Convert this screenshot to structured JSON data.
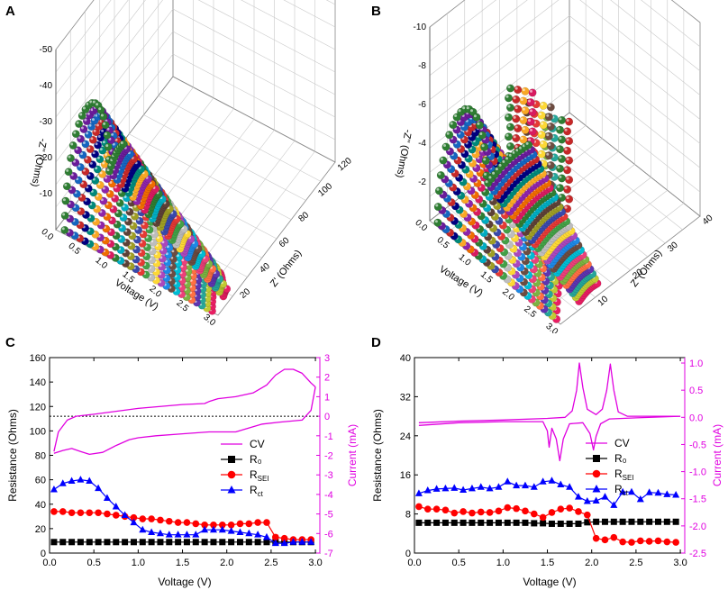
{
  "colors": {
    "black": "#000000",
    "red": "#ff0000",
    "blue": "#0000ff",
    "magenta": "#e000e0"
  },
  "panels": {
    "A": {
      "label": "A"
    },
    "B": {
      "label": "B"
    },
    "C": {
      "label": "C"
    },
    "D": {
      "label": "D"
    }
  },
  "chart_data": [
    {
      "id": "A",
      "type": "scatter",
      "title": "",
      "xlabel": "Voltage (V)",
      "ylabel": "Z' (Ohms)",
      "zlabel": "-Z'' (Ohms)",
      "voltage_ticks": [
        "0.0",
        "0.5",
        "1.0",
        "1.5",
        "2.0",
        "2.5",
        "3.0"
      ],
      "zre_ticks": [
        "20",
        "40",
        "60",
        "80",
        "100",
        "120"
      ],
      "zim_ticks": [
        "-10",
        "-20",
        "-30",
        "-40",
        "-50"
      ],
      "zre_range": [
        0,
        120
      ],
      "zim_range": [
        0,
        -50
      ],
      "series_count": 30
    },
    {
      "id": "B",
      "type": "scatter",
      "title": "",
      "xlabel": "Voltage (V)",
      "ylabel": "Z' (Ohms)",
      "zlabel": "-Z'' (Ohms)",
      "voltage_ticks": [
        "0.0",
        "0.5",
        "1.0",
        "1.5",
        "2.0",
        "2.5",
        "3.0"
      ],
      "zre_ticks": [
        "10",
        "20",
        "30",
        "40"
      ],
      "zim_ticks": [
        "-2",
        "-4",
        "-6",
        "-8",
        "-10"
      ],
      "zre_range": [
        0,
        40
      ],
      "zim_range": [
        0,
        -10
      ],
      "series_count": 30
    },
    {
      "id": "C",
      "type": "line",
      "xlabel": "Voltage (V)",
      "ylabel": "Resistance (Ohms)",
      "y2label": "Current (mA)",
      "xlim": [
        0,
        3.05
      ],
      "ylim": [
        0,
        160
      ],
      "y2lim": [
        -7,
        3
      ],
      "xticks": [
        "0.0",
        "0.5",
        "1.0",
        "1.5",
        "2.0",
        "2.5",
        "3.0"
      ],
      "yticks": [
        "0",
        "20",
        "40",
        "60",
        "80",
        "100",
        "120",
        "140",
        "160"
      ],
      "y2ticks": [
        "-7",
        "-6",
        "-5",
        "-4",
        "-3",
        "-2",
        "-1",
        "0",
        "1",
        "2",
        "3"
      ],
      "legend": [
        "CV",
        "R₀",
        "RSEI",
        "Rct"
      ],
      "zero_line_y2": 0,
      "x": [
        0.05,
        0.15,
        0.25,
        0.35,
        0.45,
        0.55,
        0.65,
        0.75,
        0.85,
        0.95,
        1.05,
        1.15,
        1.25,
        1.35,
        1.45,
        1.55,
        1.65,
        1.75,
        1.85,
        1.95,
        2.05,
        2.15,
        2.25,
        2.35,
        2.45,
        2.55,
        2.65,
        2.75,
        2.85,
        2.95
      ],
      "series": [
        {
          "name": "R0",
          "values": [
            9,
            9,
            9,
            9,
            9,
            9,
            9,
            9,
            9,
            9,
            9,
            9,
            9,
            9,
            9,
            9,
            9,
            9,
            9,
            9,
            9,
            9,
            9,
            9,
            9,
            9,
            9,
            9,
            9,
            9
          ]
        },
        {
          "name": "RSEI",
          "values": [
            34,
            34,
            33,
            33,
            33,
            33,
            32,
            31,
            30,
            29,
            28,
            28,
            27,
            26,
            25,
            25,
            24,
            23,
            23,
            23,
            23,
            24,
            24,
            25,
            25,
            13,
            12,
            11,
            11,
            11
          ]
        },
        {
          "name": "Rct",
          "values": [
            52,
            57,
            59,
            60,
            59,
            53,
            45,
            38,
            31,
            25,
            19,
            17,
            16,
            15,
            15,
            15,
            15,
            19,
            19,
            19,
            18,
            17,
            16,
            15,
            13,
            8,
            8,
            9,
            9,
            9
          ]
        }
      ],
      "cv_anodic": [
        [
          0.05,
          -1.8
        ],
        [
          0.1,
          -0.8
        ],
        [
          0.2,
          -0.2
        ],
        [
          0.3,
          0.0
        ],
        [
          0.5,
          0.1
        ],
        [
          1.0,
          0.4
        ],
        [
          1.5,
          0.6
        ],
        [
          1.75,
          0.65
        ],
        [
          1.8,
          0.75
        ],
        [
          1.9,
          0.9
        ],
        [
          2.1,
          1.0
        ],
        [
          2.3,
          1.2
        ],
        [
          2.45,
          1.6
        ],
        [
          2.55,
          2.1
        ],
        [
          2.65,
          2.4
        ],
        [
          2.75,
          2.4
        ],
        [
          2.85,
          2.2
        ],
        [
          2.95,
          1.7
        ],
        [
          3.0,
          1.5
        ]
      ],
      "cv_cathodic": [
        [
          3.0,
          1.5
        ],
        [
          2.95,
          0.3
        ],
        [
          2.85,
          -0.2
        ],
        [
          2.6,
          -0.3
        ],
        [
          2.4,
          -0.4
        ],
        [
          2.25,
          -0.6
        ],
        [
          2.1,
          -0.8
        ],
        [
          1.8,
          -0.8
        ],
        [
          1.5,
          -0.9
        ],
        [
          1.2,
          -1.0
        ],
        [
          1.0,
          -1.1
        ],
        [
          0.9,
          -1.2
        ],
        [
          0.75,
          -1.5
        ],
        [
          0.6,
          -1.85
        ],
        [
          0.45,
          -1.95
        ],
        [
          0.35,
          -1.8
        ],
        [
          0.25,
          -1.65
        ],
        [
          0.15,
          -1.75
        ],
        [
          0.05,
          -1.9
        ]
      ]
    },
    {
      "id": "D",
      "type": "line",
      "xlabel": "Voltage (V)",
      "ylabel": "Resistance (Ohms)",
      "y2label": "Current (mA)",
      "xlim": [
        0,
        3.05
      ],
      "ylim": [
        0,
        40
      ],
      "y2lim": [
        -2.5,
        1.1
      ],
      "xticks": [
        "0.0",
        "0.5",
        "1.0",
        "1.5",
        "2.0",
        "2.5",
        "3.0"
      ],
      "yticks": [
        "0",
        "8",
        "16",
        "24",
        "32",
        "40"
      ],
      "y2ticks": [
        "-2.5",
        "-2.0",
        "-1.5",
        "-1.0",
        "-0.5",
        "0.0",
        "0.5",
        "1.0"
      ],
      "legend": [
        "CV",
        "R₀",
        "RSEI",
        "Rct"
      ],
      "x": [
        0.05,
        0.15,
        0.25,
        0.35,
        0.45,
        0.55,
        0.65,
        0.75,
        0.85,
        0.95,
        1.05,
        1.15,
        1.25,
        1.35,
        1.45,
        1.55,
        1.65,
        1.75,
        1.85,
        1.95,
        2.05,
        2.15,
        2.25,
        2.35,
        2.45,
        2.55,
        2.65,
        2.75,
        2.85,
        2.95
      ],
      "series": [
        {
          "name": "R0",
          "values": [
            6.2,
            6.2,
            6.2,
            6.2,
            6.2,
            6.2,
            6.2,
            6.2,
            6.2,
            6.2,
            6.2,
            6.2,
            6.2,
            6.1,
            6.1,
            6.0,
            6.0,
            6.0,
            6.0,
            6.3,
            6.4,
            6.4,
            6.4,
            6.4,
            6.4,
            6.4,
            6.4,
            6.4,
            6.4,
            6.4
          ]
        },
        {
          "name": "RSEI",
          "values": [
            9.5,
            9,
            9,
            8.8,
            8.2,
            8.5,
            8.2,
            8.4,
            8.3,
            8.6,
            9.3,
            9.1,
            8.6,
            8.0,
            7.3,
            8.3,
            9.0,
            9.2,
            8.5,
            7.8,
            3.0,
            2.7,
            3.2,
            2.3,
            2.2,
            2.5,
            2.4,
            2.5,
            2.3,
            2.2
          ]
        },
        {
          "name": "Rct",
          "values": [
            12.2,
            12.8,
            13.1,
            13.2,
            13.3,
            12.9,
            13.2,
            13.5,
            13.2,
            13.5,
            14.6,
            13.8,
            13.8,
            13.5,
            14.6,
            14.8,
            14.0,
            13.5,
            11.5,
            10.6,
            10.7,
            11.5,
            9.8,
            12.5,
            12.5,
            11.0,
            12.4,
            12.3,
            12.0,
            11.9
          ]
        }
      ],
      "cv_segments": [
        [
          [
            0.05,
            -0.1
          ],
          [
            0.5,
            -0.07
          ],
          [
            1.0,
            -0.05
          ],
          [
            1.5,
            -0.02
          ],
          [
            1.7,
            0.0
          ],
          [
            1.78,
            0.12
          ],
          [
            1.83,
            0.5
          ],
          [
            1.86,
            1.0
          ],
          [
            1.9,
            0.55
          ],
          [
            1.95,
            0.15
          ],
          [
            2.05,
            0.05
          ],
          [
            2.12,
            0.15
          ],
          [
            2.17,
            0.5
          ],
          [
            2.21,
            0.98
          ],
          [
            2.25,
            0.5
          ],
          [
            2.3,
            0.1
          ],
          [
            2.4,
            0.02
          ],
          [
            3.0,
            0.02
          ]
        ],
        [
          [
            3.0,
            0.02
          ],
          [
            2.5,
            -0.01
          ],
          [
            2.2,
            -0.03
          ],
          [
            2.1,
            -0.12
          ],
          [
            2.05,
            -0.35
          ],
          [
            2.02,
            -0.6
          ],
          [
            1.98,
            -0.3
          ],
          [
            1.9,
            -0.1
          ],
          [
            1.75,
            -0.12
          ],
          [
            1.68,
            -0.4
          ],
          [
            1.64,
            -0.8
          ],
          [
            1.6,
            -0.4
          ],
          [
            1.55,
            -0.2
          ],
          [
            1.52,
            -0.55
          ],
          [
            1.5,
            -0.25
          ],
          [
            1.45,
            -0.08
          ],
          [
            1.0,
            -0.08
          ],
          [
            0.5,
            -0.1
          ],
          [
            0.05,
            -0.15
          ]
        ]
      ]
    }
  ]
}
